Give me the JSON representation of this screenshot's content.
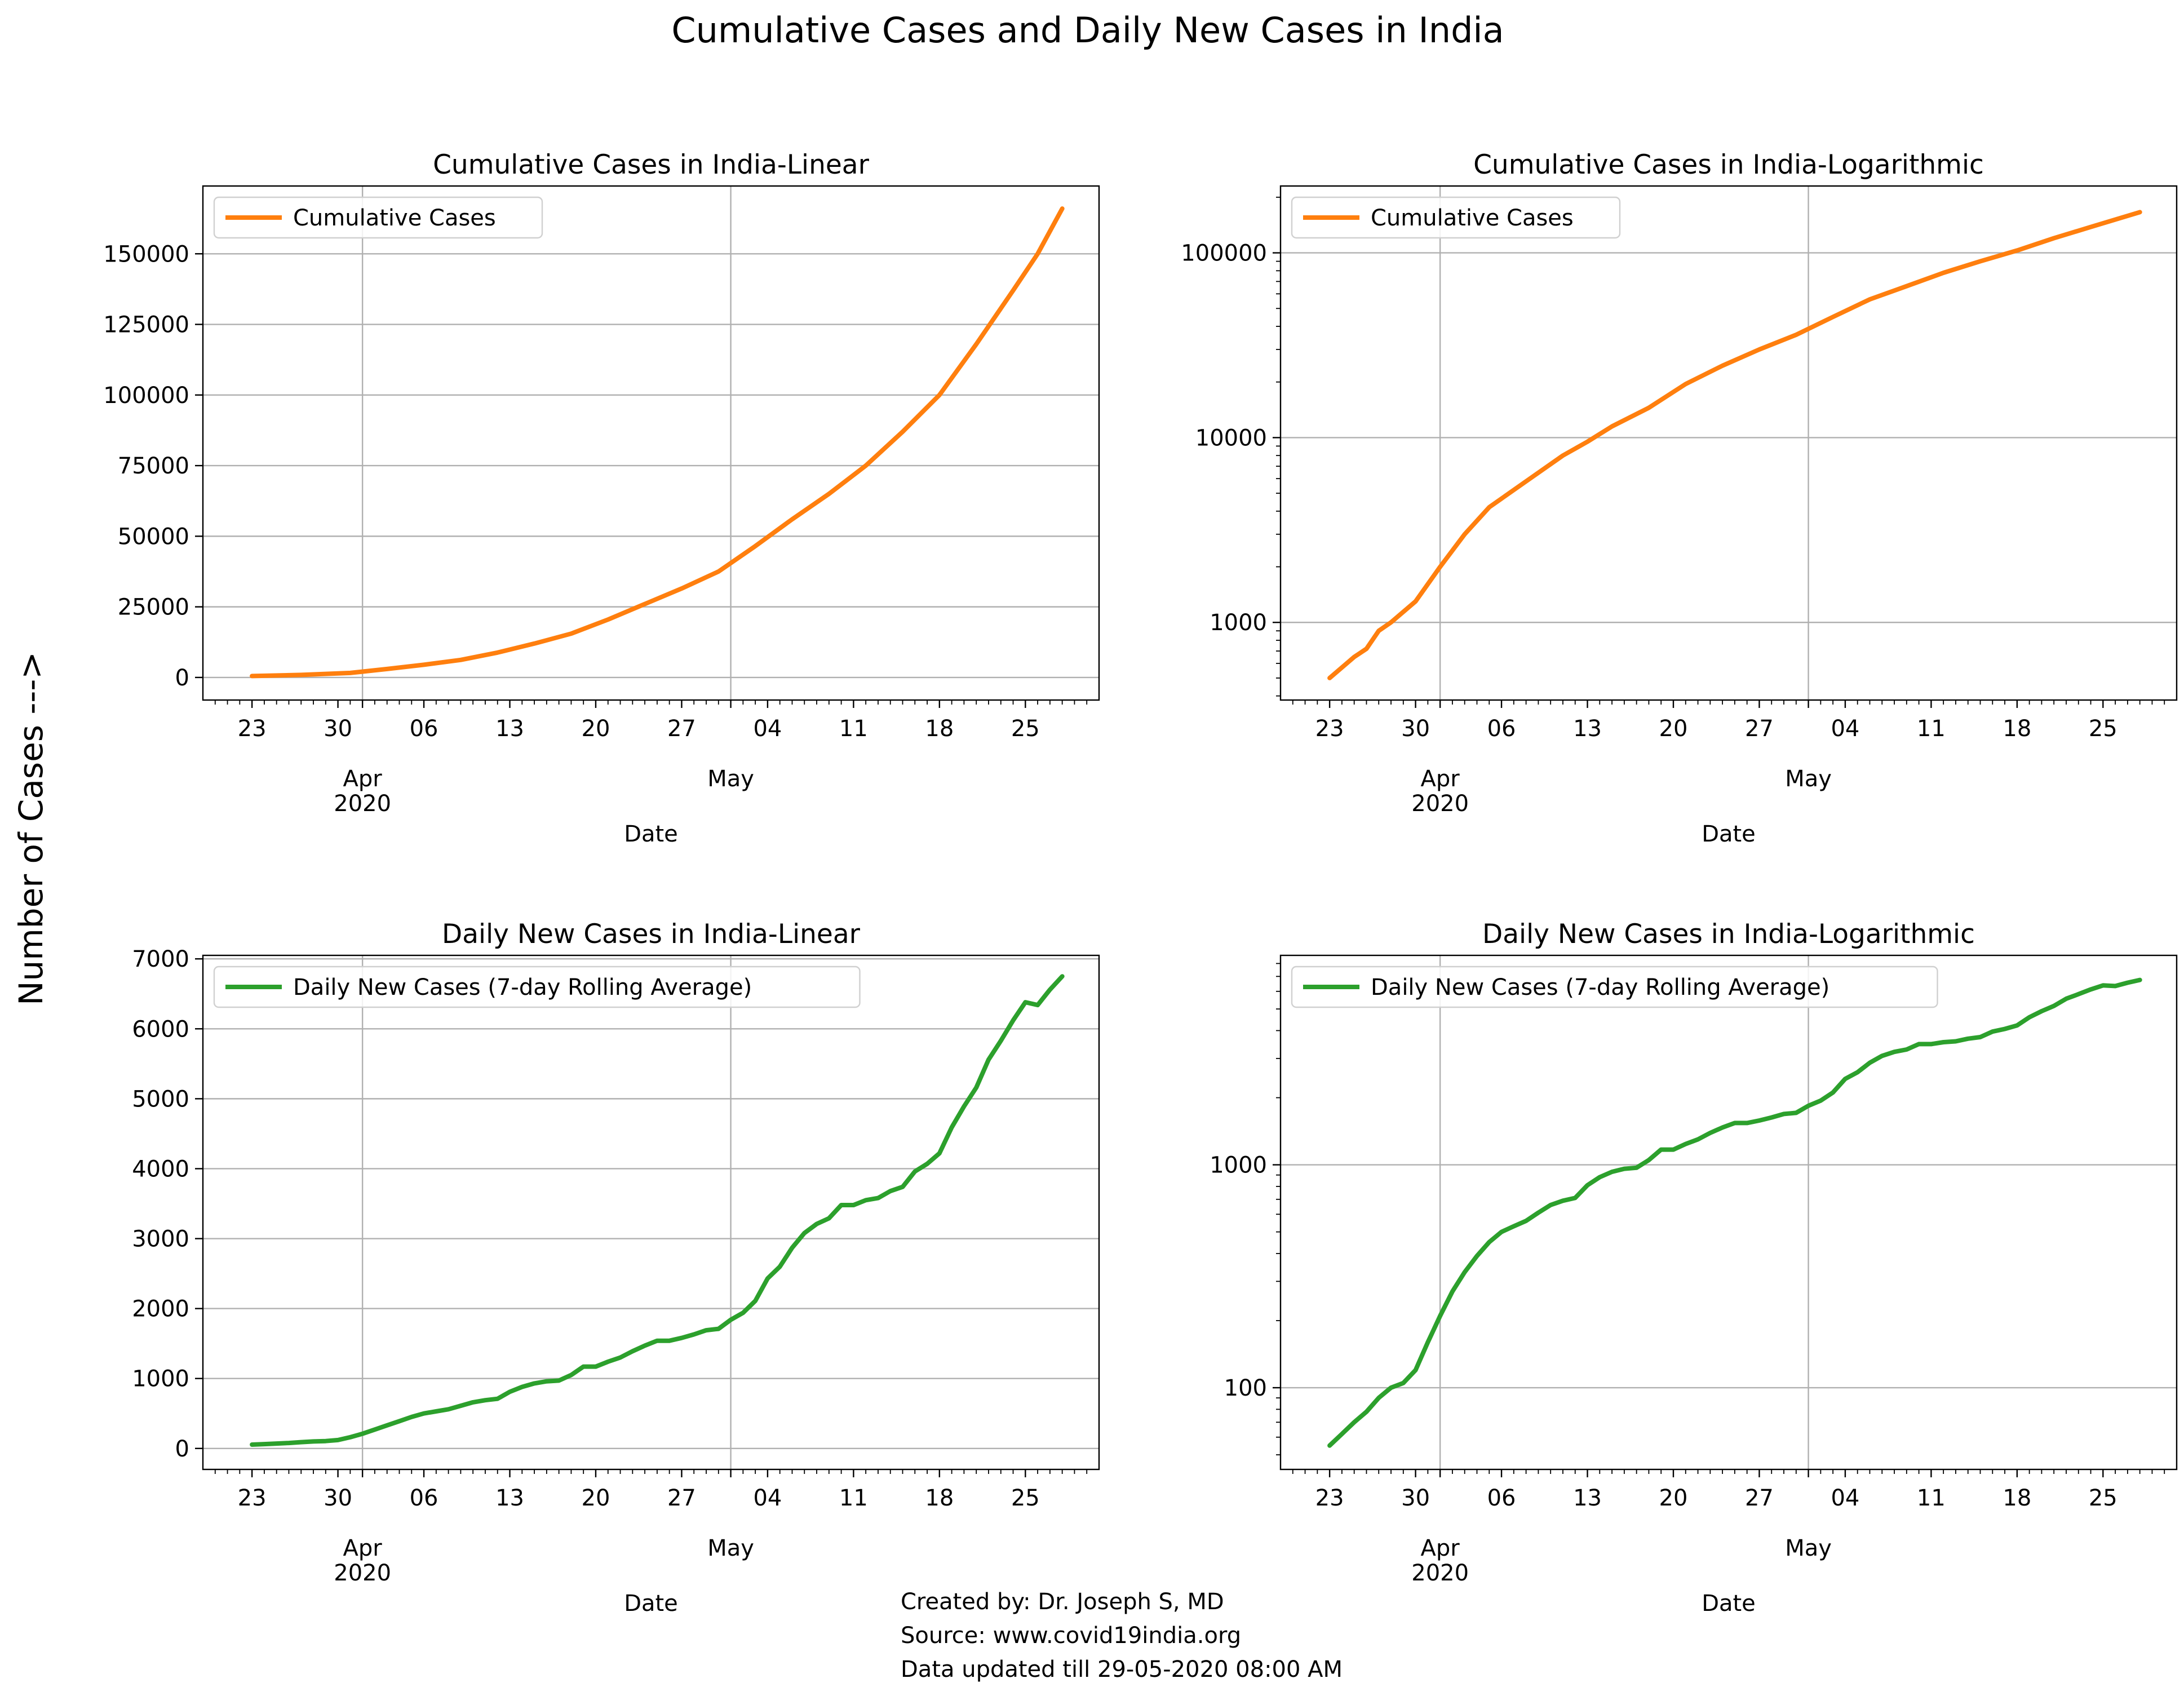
{
  "figure": {
    "title": "Cumulative Cases and Daily New Cases in India",
    "ylabel": "Number of Cases --->",
    "credits": [
      "Created by: Dr. Joseph S, MD",
      "Source: www.covid19india.org",
      "Data updated till 29-05-2020 08:00 AM"
    ]
  },
  "colors": {
    "cumulative": "#ff7f0e",
    "daily": "#2ca02c",
    "grid": "#b0b0b0"
  },
  "chart_data": [
    {
      "type": "line",
      "title": "Cumulative Cases in India-Linear",
      "xlabel": "Date",
      "ylabel": "",
      "yscale": "linear",
      "ylim": [
        -8000,
        174000
      ],
      "yticks": [
        0,
        25000,
        50000,
        75000,
        100000,
        125000,
        150000
      ],
      "ytick_labels": [
        "0",
        "25000",
        "50000",
        "75000",
        "100000",
        "125000",
        "150000"
      ],
      "xlim": [
        "2020-03-19",
        "2020-05-31"
      ],
      "legend": "upper-left",
      "grid": true,
      "series": [
        {
          "name": "Cumulative Cases",
          "color": "#ff7f0e",
          "x": [
            "2020-03-23",
            "2020-03-27",
            "2020-03-31",
            "2020-04-03",
            "2020-04-06",
            "2020-04-09",
            "2020-04-12",
            "2020-04-15",
            "2020-04-18",
            "2020-04-21",
            "2020-04-24",
            "2020-04-27",
            "2020-04-30",
            "2020-05-03",
            "2020-05-06",
            "2020-05-09",
            "2020-05-12",
            "2020-05-15",
            "2020-05-18",
            "2020-05-21",
            "2020-05-24",
            "2020-05-26",
            "2020-05-28"
          ],
          "y": [
            500,
            900,
            1600,
            3000,
            4500,
            6200,
            8800,
            12000,
            15500,
            20500,
            26000,
            31500,
            37500,
            46500,
            56000,
            65000,
            75000,
            87000,
            100000,
            118000,
            137000,
            150000,
            166000
          ]
        }
      ]
    },
    {
      "type": "line",
      "title": "Cumulative Cases in India-Logarithmic",
      "xlabel": "Date",
      "ylabel": "",
      "yscale": "log",
      "ylim": [
        380,
        230000
      ],
      "yticks": [
        1000,
        10000,
        100000
      ],
      "ytick_labels": [
        "1000",
        "10000",
        "100000"
      ],
      "xlim": [
        "2020-03-19",
        "2020-05-31"
      ],
      "legend": "upper-left",
      "grid": true,
      "series": [
        {
          "name": "Cumulative Cases",
          "color": "#ff7f0e",
          "x": [
            "2020-03-23",
            "2020-03-25",
            "2020-03-26",
            "2020-03-27",
            "2020-03-28",
            "2020-03-30",
            "2020-04-01",
            "2020-04-03",
            "2020-04-05",
            "2020-04-08",
            "2020-04-11",
            "2020-04-13",
            "2020-04-15",
            "2020-04-18",
            "2020-04-21",
            "2020-04-24",
            "2020-04-27",
            "2020-04-30",
            "2020-05-03",
            "2020-05-06",
            "2020-05-09",
            "2020-05-12",
            "2020-05-15",
            "2020-05-18",
            "2020-05-21",
            "2020-05-24",
            "2020-05-28"
          ],
          "y": [
            500,
            650,
            720,
            900,
            1000,
            1300,
            2000,
            3000,
            4200,
            5800,
            8000,
            9500,
            11500,
            14500,
            19500,
            24500,
            30000,
            36000,
            45000,
            56000,
            66000,
            78000,
            90000,
            103000,
            120000,
            138000,
            166000
          ]
        }
      ]
    },
    {
      "type": "line",
      "title": "Daily New Cases in India-Linear",
      "xlabel": "Date",
      "ylabel": "",
      "yscale": "linear",
      "ylim": [
        -300,
        7050
      ],
      "yticks": [
        0,
        1000,
        2000,
        3000,
        4000,
        5000,
        6000,
        7000
      ],
      "ytick_labels": [
        "0",
        "1000",
        "2000",
        "3000",
        "4000",
        "5000",
        "6000",
        "7000"
      ],
      "xlim": [
        "2020-03-19",
        "2020-05-31"
      ],
      "legend": "upper-left",
      "grid": true,
      "series": [
        {
          "name": "Daily New Cases (7-day Rolling Average)",
          "color": "#2ca02c",
          "x": [
            "2020-03-23",
            "2020-03-24",
            "2020-03-25",
            "2020-03-26",
            "2020-03-27",
            "2020-03-28",
            "2020-03-29",
            "2020-03-30",
            "2020-03-31",
            "2020-04-01",
            "2020-04-02",
            "2020-04-03",
            "2020-04-04",
            "2020-04-05",
            "2020-04-06",
            "2020-04-07",
            "2020-04-08",
            "2020-04-09",
            "2020-04-10",
            "2020-04-11",
            "2020-04-12",
            "2020-04-13",
            "2020-04-14",
            "2020-04-15",
            "2020-04-16",
            "2020-04-17",
            "2020-04-18",
            "2020-04-19",
            "2020-04-20",
            "2020-04-21",
            "2020-04-22",
            "2020-04-23",
            "2020-04-24",
            "2020-04-25",
            "2020-04-26",
            "2020-04-27",
            "2020-04-28",
            "2020-04-29",
            "2020-04-30",
            "2020-05-01",
            "2020-05-02",
            "2020-05-03",
            "2020-05-04",
            "2020-05-05",
            "2020-05-06",
            "2020-05-07",
            "2020-05-08",
            "2020-05-09",
            "2020-05-10",
            "2020-05-11",
            "2020-05-12",
            "2020-05-13",
            "2020-05-14",
            "2020-05-15",
            "2020-05-16",
            "2020-05-17",
            "2020-05-18",
            "2020-05-19",
            "2020-05-20",
            "2020-05-21",
            "2020-05-22",
            "2020-05-23",
            "2020-05-24",
            "2020-05-25",
            "2020-05-26",
            "2020-05-27",
            "2020-05-28"
          ],
          "y": [
            55,
            62,
            70,
            78,
            90,
            100,
            105,
            120,
            160,
            210,
            270,
            330,
            390,
            450,
            500,
            530,
            560,
            610,
            660,
            690,
            710,
            810,
            880,
            930,
            960,
            970,
            1050,
            1170,
            1170,
            1240,
            1300,
            1390,
            1470,
            1540,
            1540,
            1580,
            1630,
            1690,
            1710,
            1840,
            1940,
            2110,
            2430,
            2600,
            2870,
            3080,
            3210,
            3290,
            3480,
            3480,
            3550,
            3580,
            3680,
            3740,
            3960,
            4070,
            4220,
            4590,
            4890,
            5160,
            5560,
            5830,
            6120,
            6380,
            6340,
            6560,
            6750
          ]
        }
      ]
    },
    {
      "type": "line",
      "title": "Daily New Cases in India-Logarithmic",
      "xlabel": "Date",
      "ylabel": "",
      "yscale": "log",
      "ylim": [
        43,
        8700
      ],
      "yticks": [
        100,
        1000
      ],
      "ytick_labels": [
        "100",
        "1000"
      ],
      "xlim": [
        "2020-03-19",
        "2020-05-31"
      ],
      "legend": "upper-left",
      "grid": true,
      "series": [
        {
          "name": "Daily New Cases (7-day Rolling Average)",
          "color": "#2ca02c",
          "x": [
            "2020-03-23",
            "2020-03-24",
            "2020-03-25",
            "2020-03-26",
            "2020-03-27",
            "2020-03-28",
            "2020-03-29",
            "2020-03-30",
            "2020-03-31",
            "2020-04-01",
            "2020-04-02",
            "2020-04-03",
            "2020-04-04",
            "2020-04-05",
            "2020-04-06",
            "2020-04-07",
            "2020-04-08",
            "2020-04-09",
            "2020-04-10",
            "2020-04-11",
            "2020-04-12",
            "2020-04-13",
            "2020-04-14",
            "2020-04-15",
            "2020-04-16",
            "2020-04-17",
            "2020-04-18",
            "2020-04-19",
            "2020-04-20",
            "2020-04-21",
            "2020-04-22",
            "2020-04-23",
            "2020-04-24",
            "2020-04-25",
            "2020-04-26",
            "2020-04-27",
            "2020-04-28",
            "2020-04-29",
            "2020-04-30",
            "2020-05-01",
            "2020-05-02",
            "2020-05-03",
            "2020-05-04",
            "2020-05-05",
            "2020-05-06",
            "2020-05-07",
            "2020-05-08",
            "2020-05-09",
            "2020-05-10",
            "2020-05-11",
            "2020-05-12",
            "2020-05-13",
            "2020-05-14",
            "2020-05-15",
            "2020-05-16",
            "2020-05-17",
            "2020-05-18",
            "2020-05-19",
            "2020-05-20",
            "2020-05-21",
            "2020-05-22",
            "2020-05-23",
            "2020-05-24",
            "2020-05-25",
            "2020-05-26",
            "2020-05-27",
            "2020-05-28"
          ],
          "y": [
            55,
            62,
            70,
            78,
            90,
            100,
            105,
            120,
            160,
            210,
            270,
            330,
            390,
            450,
            500,
            530,
            560,
            610,
            660,
            690,
            710,
            810,
            880,
            930,
            960,
            970,
            1050,
            1170,
            1170,
            1240,
            1300,
            1390,
            1470,
            1540,
            1540,
            1580,
            1630,
            1690,
            1710,
            1840,
            1940,
            2110,
            2430,
            2600,
            2870,
            3080,
            3210,
            3290,
            3480,
            3480,
            3550,
            3580,
            3680,
            3740,
            3960,
            4070,
            4220,
            4590,
            4890,
            5160,
            5560,
            5830,
            6120,
            6380,
            6340,
            6560,
            6750
          ]
        }
      ]
    }
  ],
  "x_axis": {
    "major_ticks": [
      "2020-03-23",
      "2020-03-30",
      "2020-04-06",
      "2020-04-13",
      "2020-04-20",
      "2020-04-27",
      "2020-05-04",
      "2020-05-11",
      "2020-05-18",
      "2020-05-25"
    ],
    "major_labels": [
      "23",
      "30",
      "06",
      "13",
      "20",
      "27",
      "04",
      "11",
      "18",
      "25"
    ],
    "month_ticks": [
      "2020-04-01",
      "2020-05-01"
    ],
    "month_labels": [
      "Apr",
      "May"
    ],
    "year_label": "2020"
  }
}
